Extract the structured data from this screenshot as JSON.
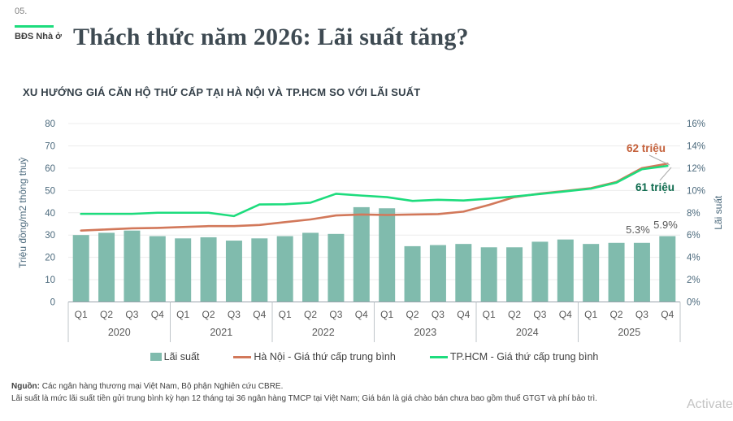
{
  "page": {
    "kicker_number": "05.",
    "kicker_label": "BĐS Nhà ở",
    "title": "Thách thức năm 2026: Lãi suất tăng?",
    "watermark": "Activate"
  },
  "colors": {
    "accent_green": "#1ddc7d",
    "bar_teal": "#80BBAD",
    "hanoi_orange": "#D2785A",
    "hcmc_green": "#1DDC7D",
    "annotation_orange": "#C4603A",
    "annotation_dark_green": "#0E6B4E",
    "axis_label": "#4C6A7D",
    "category_label": "#595959",
    "gridline": "#ECECEC",
    "axis_line": "#9AA3AB",
    "divider": "#BFC5CA"
  },
  "chart_data": {
    "type": "bar+line combo",
    "title": "XU HƯỚNG GIÁ CĂN HỘ THỨ CẤP TẠI HÀ NỘI VÀ TP.HCM SO VỚI LÃI SUẤT",
    "years": [
      "2020",
      "2021",
      "2022",
      "2023",
      "2024",
      "2025"
    ],
    "quarters": [
      "Q1",
      "Q2",
      "Q3",
      "Q4"
    ],
    "left_axis": {
      "label": "Triệu đồng/m2 thông thuỷ",
      "min": 0,
      "max": 80,
      "step": 10
    },
    "right_axis": {
      "label": "Lãi suất",
      "min": 0,
      "max": 16,
      "step": 2,
      "suffix": "%"
    },
    "grid": "horizontal only",
    "legend_position": "bottom center",
    "series": [
      {
        "name": "Lãi suất",
        "type": "bar",
        "axis": "right",
        "unit": "%",
        "color": "#80BBAD",
        "values": [
          6.0,
          6.2,
          6.4,
          5.9,
          5.7,
          5.8,
          5.5,
          5.7,
          5.9,
          6.2,
          6.1,
          8.5,
          8.4,
          5.0,
          5.1,
          5.2,
          4.9,
          4.9,
          5.4,
          5.6,
          5.2,
          5.3,
          5.3,
          5.9
        ]
      },
      {
        "name": "Hà Nội - Giá thứ cấp trung bình",
        "type": "line",
        "axis": "left",
        "unit": "triệu đồng/m2",
        "color": "#D2785A",
        "values": [
          32,
          32.5,
          33,
          33.2,
          33.6,
          34,
          34,
          34.5,
          35.8,
          37,
          38.8,
          39.2,
          39,
          39.2,
          39.4,
          40.5,
          43.5,
          47,
          48.6,
          49.8,
          51,
          53.8,
          60,
          62
        ]
      },
      {
        "name": "TP.HCM - Giá thứ cấp trung bình",
        "type": "line",
        "axis": "left",
        "unit": "triệu đồng/m2",
        "color": "#1DDC7D",
        "values": [
          39.5,
          39.5,
          39.5,
          40,
          40,
          40,
          38.5,
          43.7,
          43.8,
          44.5,
          48.5,
          47.7,
          47,
          45.3,
          45.8,
          45.5,
          46.3,
          47.3,
          48.4,
          49.6,
          50.8,
          53.5,
          59.5,
          61
        ]
      }
    ],
    "annotations": [
      {
        "id": "hanoi-end",
        "text": "62 triệu",
        "color": "#C4603A"
      },
      {
        "id": "hcmc-end",
        "text": "61 triệu",
        "color": "#0E6B4E"
      },
      {
        "id": "rate-q3-2025",
        "text": "5.3%",
        "color": "#595959"
      },
      {
        "id": "rate-q4-2025",
        "text": "5.9%",
        "color": "#595959"
      }
    ]
  },
  "footer": {
    "source_label": "Nguồn:",
    "source_text": " Các ngân hàng thương mại Việt Nam, Bộ phận Nghiên cứu CBRE.",
    "note": "Lãi suất là mức lãi suất tiền gửi trung bình kỳ hạn 12 tháng tại 36 ngân hàng TMCP tại Việt Nam; Giá bán là giá chào bán chưa bao gồm thuế GTGT và phí bảo trì."
  }
}
